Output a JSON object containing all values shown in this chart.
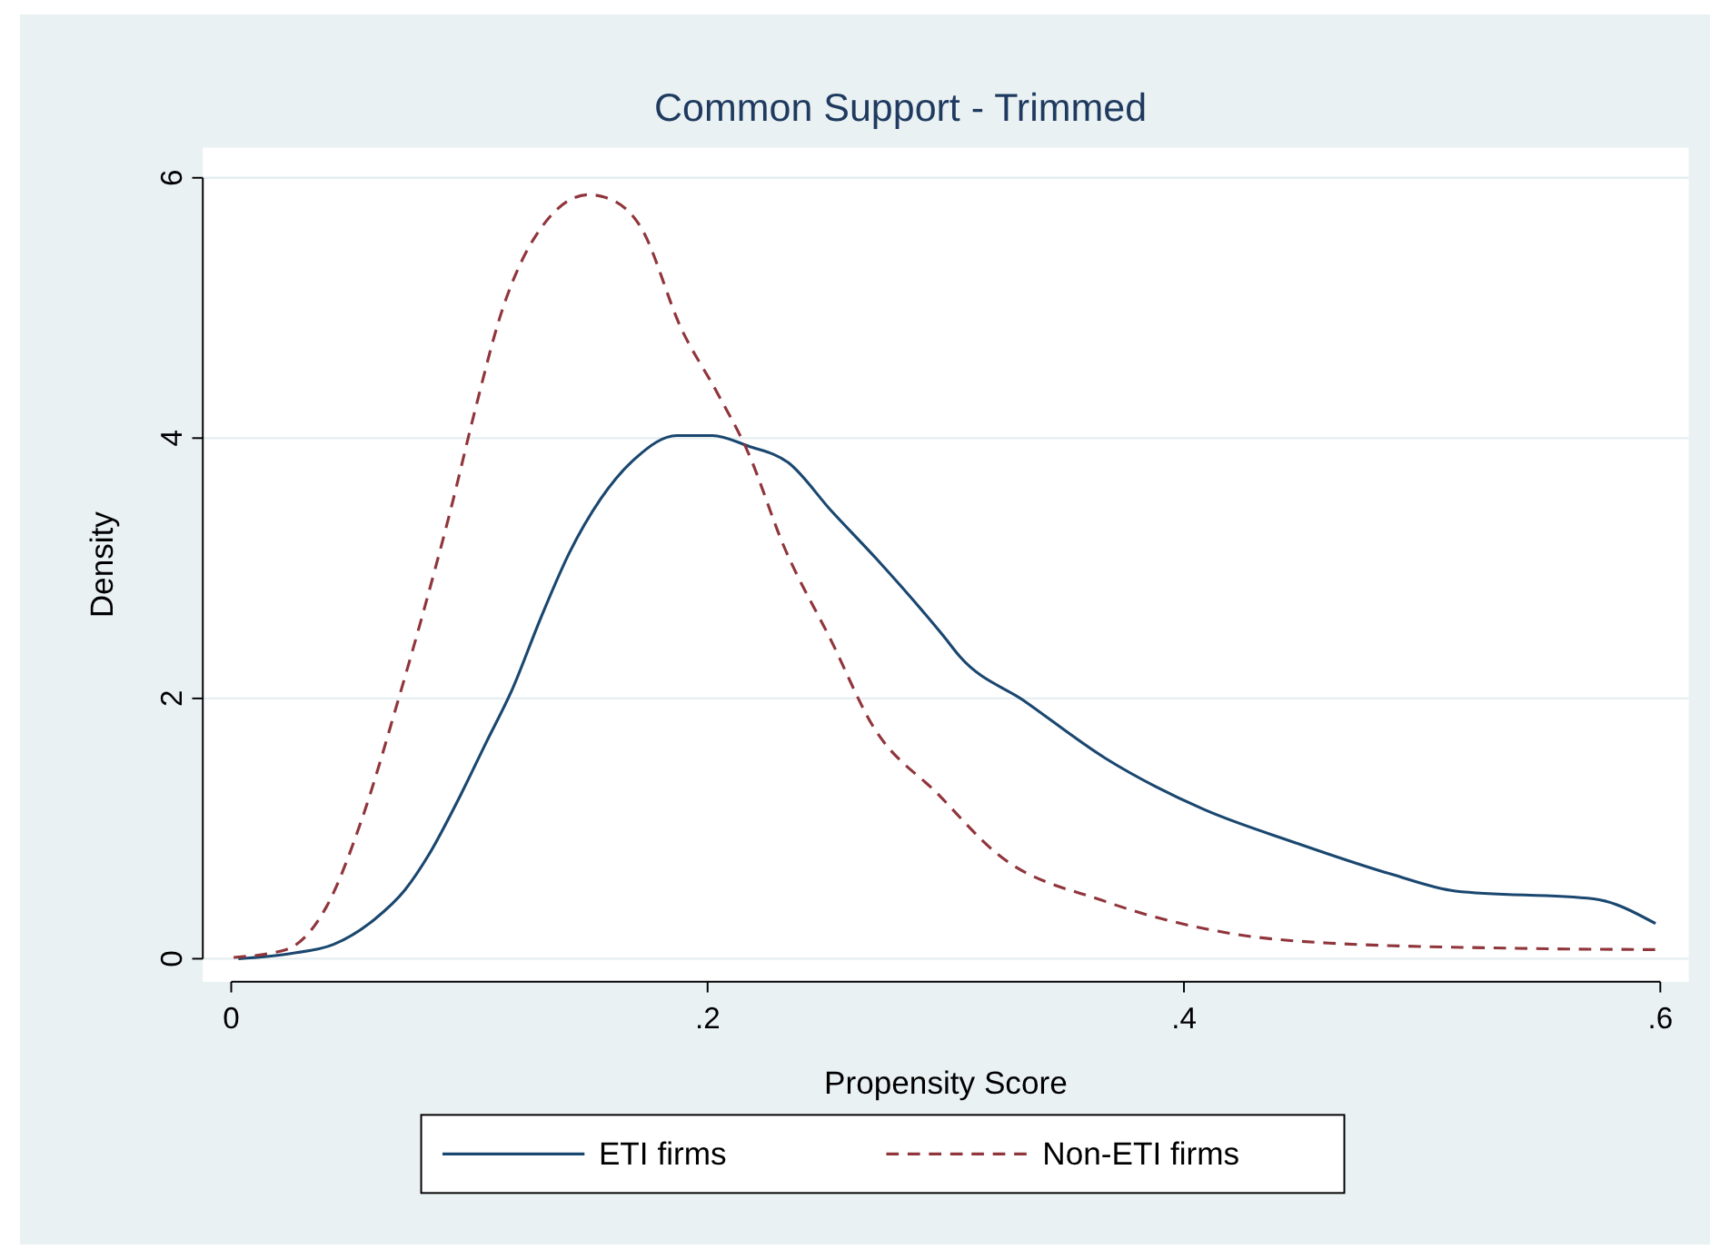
{
  "chart_data": {
    "type": "line",
    "title": "Common Support - Trimmed",
    "xlabel": "Propensity Score",
    "ylabel": "Density",
    "xlim": [
      0,
      0.6
    ],
    "xticks": [
      {
        "value": 0,
        "label": "0"
      },
      {
        "value": 0.2,
        "label": ".2"
      },
      {
        "value": 0.4,
        "label": ".4"
      },
      {
        "value": 0.6,
        "label": ".6"
      }
    ],
    "ylim": [
      0,
      6
    ],
    "yticks": [
      0,
      2,
      4,
      6
    ],
    "grid": "y",
    "legend": "bottom",
    "series": [
      {
        "name": "ETI firms",
        "color": "#1a476f",
        "line_style": "solid",
        "x": [
          0.003,
          0.025,
          0.043,
          0.06,
          0.073,
          0.083,
          0.095,
          0.107,
          0.118,
          0.13,
          0.142,
          0.155,
          0.17,
          0.187,
          0.202,
          0.217,
          0.234,
          0.252,
          0.271,
          0.299,
          0.306,
          0.333,
          0.367,
          0.408,
          0.447,
          0.487,
          0.514,
          0.572,
          0.598
        ],
        "values": [
          0,
          0.04,
          0.11,
          0.3,
          0.53,
          0.8,
          1.21,
          1.66,
          2.07,
          2.62,
          3.12,
          3.53,
          3.85,
          4.02,
          4.02,
          3.94,
          3.81,
          3.44,
          3.07,
          2.48,
          2.32,
          1.98,
          1.54,
          1.15,
          0.89,
          0.65,
          0.52,
          0.46,
          0.27
        ]
      },
      {
        "name": "Non-ETI firms",
        "color": "#90353b",
        "line_style": "dashed",
        "x": [
          0.001,
          0.023,
          0.04,
          0.055,
          0.07,
          0.08,
          0.092,
          0.103,
          0.113,
          0.127,
          0.15,
          0.157,
          0.172,
          0.189,
          0.204,
          0.217,
          0.232,
          0.252,
          0.269,
          0.297,
          0.322,
          0.367,
          0.421,
          0.461,
          0.54,
          0.598
        ],
        "values": [
          0.01,
          0.07,
          0.4,
          1.08,
          1.98,
          2.62,
          3.44,
          4.26,
          4.94,
          5.53,
          5.87,
          5.85,
          5.62,
          4.84,
          4.35,
          3.89,
          3.17,
          2.44,
          1.8,
          1.26,
          0.8,
          0.44,
          0.19,
          0.12,
          0.08,
          0.07
        ]
      }
    ]
  }
}
